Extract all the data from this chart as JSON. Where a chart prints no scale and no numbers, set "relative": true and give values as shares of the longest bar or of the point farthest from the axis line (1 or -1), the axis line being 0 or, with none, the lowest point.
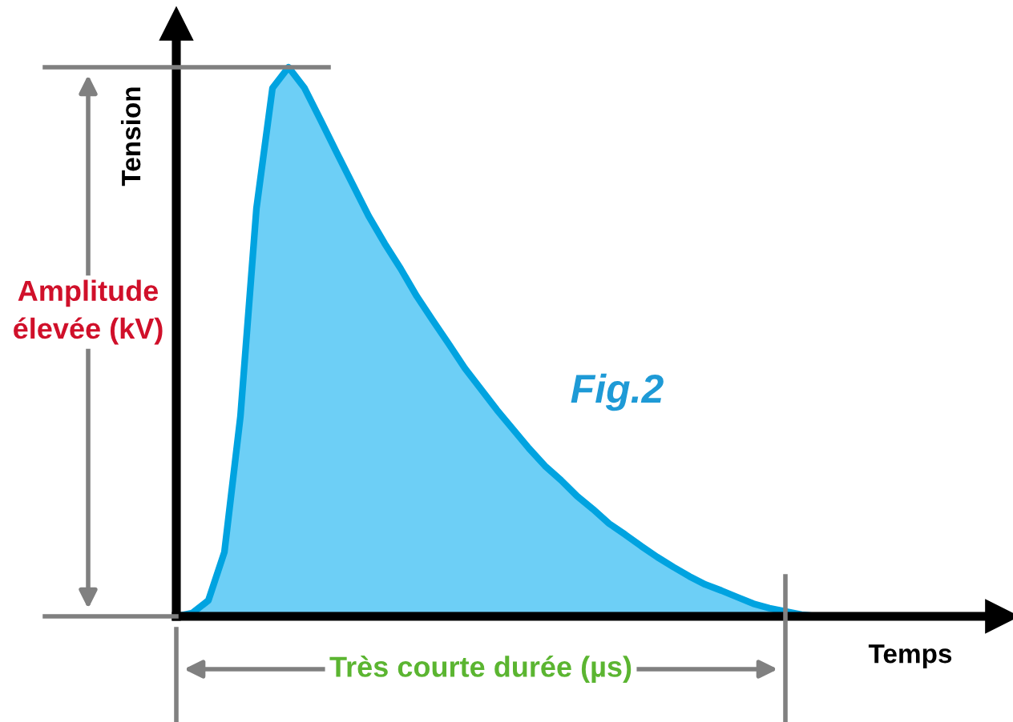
{
  "chart_data": {
    "type": "area",
    "relative": true,
    "xlabel": "Temps",
    "ylabel": "Tension",
    "annotations": [
      "Amplitude\nélevée (kV)",
      "Très courte durée (µs)",
      "Fig.2"
    ],
    "categories": [
      null,
      null,
      null,
      null,
      null,
      null,
      null,
      null,
      null,
      null,
      null,
      null,
      null,
      null,
      null,
      null,
      null,
      null,
      null,
      null,
      null,
      null,
      null,
      null,
      null,
      null,
      null,
      null,
      null,
      null,
      null,
      null,
      null,
      null,
      null,
      null,
      null,
      null,
      null,
      null,
      null
    ],
    "series": [
      {
        "color": "#6dcff6",
        "values": [
          0,
          0.006,
          0.029,
          0.117,
          0.364,
          0.743,
          0.962,
          1.0,
          0.962,
          0.904,
          0.845,
          0.787,
          0.729,
          0.679,
          0.633,
          0.583,
          0.539,
          0.496,
          0.452,
          0.414,
          0.376,
          0.341,
          0.306,
          0.274,
          0.248,
          0.219,
          0.195,
          0.169,
          0.149,
          0.128,
          0.108,
          0.09,
          0.073,
          0.058,
          0.047,
          0.035,
          0.023,
          0.015,
          0.009,
          0.003,
          0
        ]
      }
    ],
    "line_style": "solid"
  }
}
